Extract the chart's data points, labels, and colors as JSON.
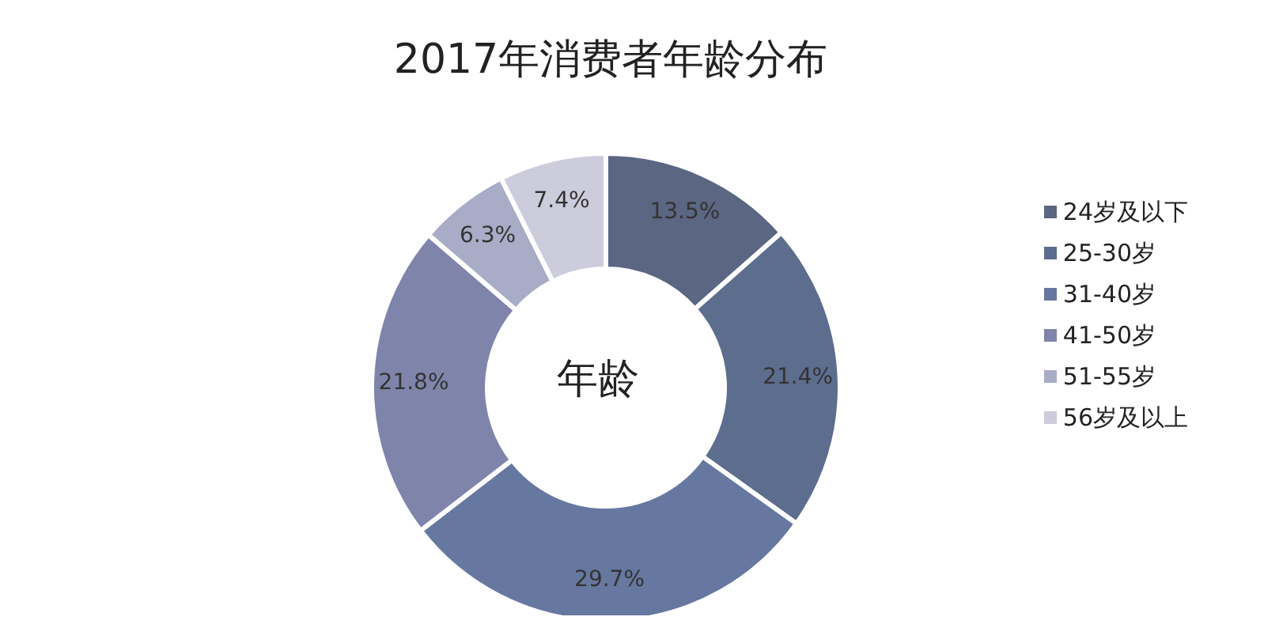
{
  "chart_data": {
    "type": "donut",
    "title": "2017年消费者年龄分布",
    "categories": [
      "24岁及以下",
      "25-30岁",
      "31-40岁",
      "41-50岁",
      "51-55岁",
      "56岁及以上"
    ],
    "values": [
      13.5,
      21.4,
      29.7,
      21.8,
      6.3,
      7.4
    ],
    "colors": [
      "#5a6682",
      "#5d6d8e",
      "#6678a0",
      "#7f84aa",
      "#a9acc6",
      "#ccccdc"
    ],
    "annotations": [
      "年龄"
    ],
    "value_labels": [
      "13.5%",
      "21.4%",
      "29.7%",
      "21.8%",
      "6.3%",
      "7.4%"
    ],
    "legend": "right"
  }
}
